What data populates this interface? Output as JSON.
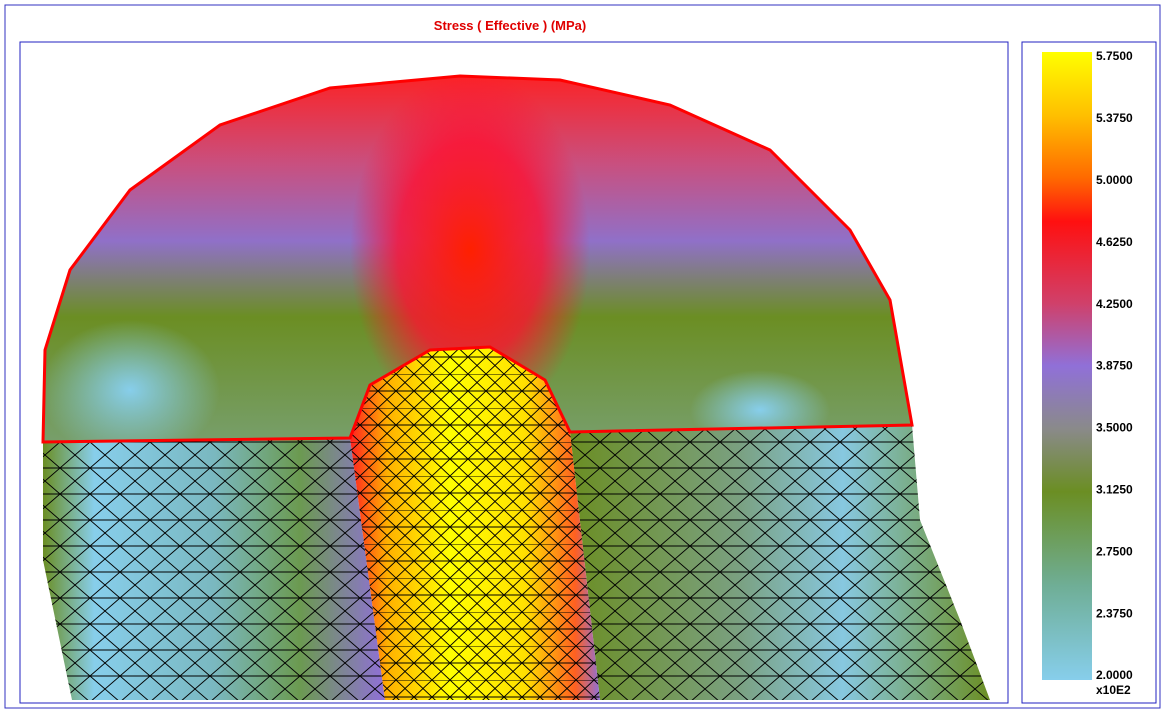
{
  "header": {
    "title": "Stress ( Effective ) (MPa)"
  },
  "colorbar": {
    "ticks": [
      "5.7500",
      "5.3750",
      "5.0000",
      "4.6250",
      "4.2500",
      "3.8750",
      "3.5000",
      "3.1250",
      "2.7500",
      "2.3750",
      "2.0000"
    ],
    "multiplier": "x10E2"
  }
}
